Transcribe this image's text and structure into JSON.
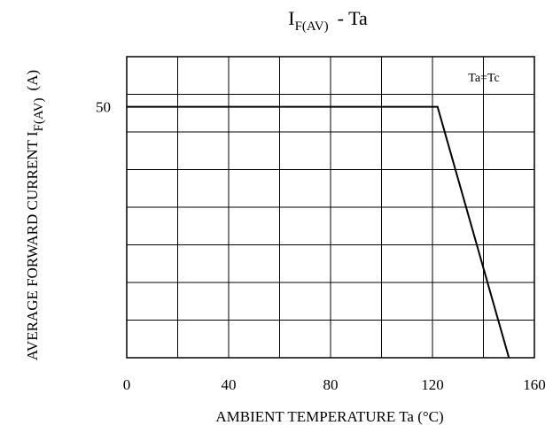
{
  "chart_data": {
    "type": "line",
    "title_main": "I",
    "title_sub": "F(AV)",
    "title_rest": "-  Ta",
    "xlabel": "AMBIENT TEMPERATURE Ta (°C)",
    "ylabel_main": "AVERAGE FORWARD CURRENT I",
    "ylabel_sub": "F(AV)",
    "ylabel_unit": "(A)",
    "annotation": "Ta=Tc",
    "xlim": [
      0,
      160
    ],
    "ylim": [
      0,
      60
    ],
    "x_ticks": [
      0,
      40,
      80,
      120,
      160
    ],
    "y_ticks": [
      50
    ],
    "grid": true,
    "series": [
      {
        "x": [
          0,
          122,
          150
        ],
        "y": [
          50,
          50,
          0
        ]
      }
    ]
  }
}
